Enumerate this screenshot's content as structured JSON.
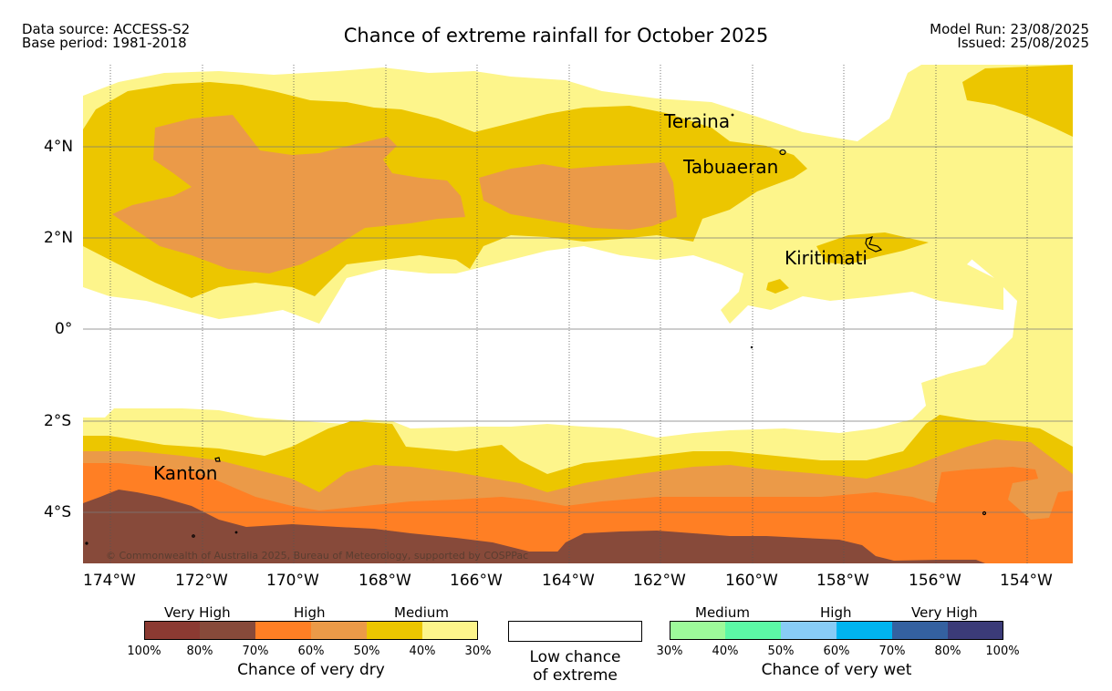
{
  "header": {
    "data_source": "Data source: ACCESS-S2",
    "base_period": "Base period: 1981-2018",
    "title": "Chance of extreme rainfall for October 2025",
    "model_run": "Model Run: 23/08/2025",
    "issued": "Issued: 25/08/2025"
  },
  "map": {
    "lat_labels": [
      "4°N",
      "2°N",
      "0°",
      "2°S",
      "4°S"
    ],
    "lon_labels": [
      "174°W",
      "172°W",
      "170°W",
      "168°W",
      "166°W",
      "164°W",
      "162°W",
      "160°W",
      "158°W",
      "156°W",
      "154°W"
    ],
    "places": [
      "Teraina",
      "Tabuaeran",
      "Kiritimati",
      "Kanton"
    ],
    "copyright": "© Commonwealth of Australia 2025, Bureau of Meteorology, supported by COSPPac",
    "colors": {
      "dry_very_high_1": "#8b3a32",
      "dry_very_high_2": "#874a3a",
      "dry_high_1": "#ff7f24",
      "dry_high_2": "#eb9a48",
      "dry_medium_1": "#ecc600",
      "dry_medium_2": "#fdf58b",
      "low": "#ffffff",
      "wet_medium_1": "#9dfa9a",
      "wet_medium_2": "#5cf8a6",
      "wet_high_1": "#88ccf6",
      "wet_high_2": "#00b4ef",
      "wet_very_high_1": "#3461a0",
      "wet_very_high_2": "#3b3b78"
    }
  },
  "legend": {
    "dry": {
      "categories": [
        "Very High",
        "High",
        "Medium"
      ],
      "ticks": [
        "100%",
        "80%",
        "70%",
        "60%",
        "50%",
        "40%",
        "30%"
      ],
      "caption": "Chance of very dry"
    },
    "low": {
      "caption_line1": "Low chance",
      "caption_line2": "of extreme"
    },
    "wet": {
      "categories": [
        "Medium",
        "High",
        "Very High"
      ],
      "ticks": [
        "30%",
        "40%",
        "50%",
        "60%",
        "70%",
        "80%",
        "100%"
      ],
      "caption": "Chance of very wet"
    }
  }
}
